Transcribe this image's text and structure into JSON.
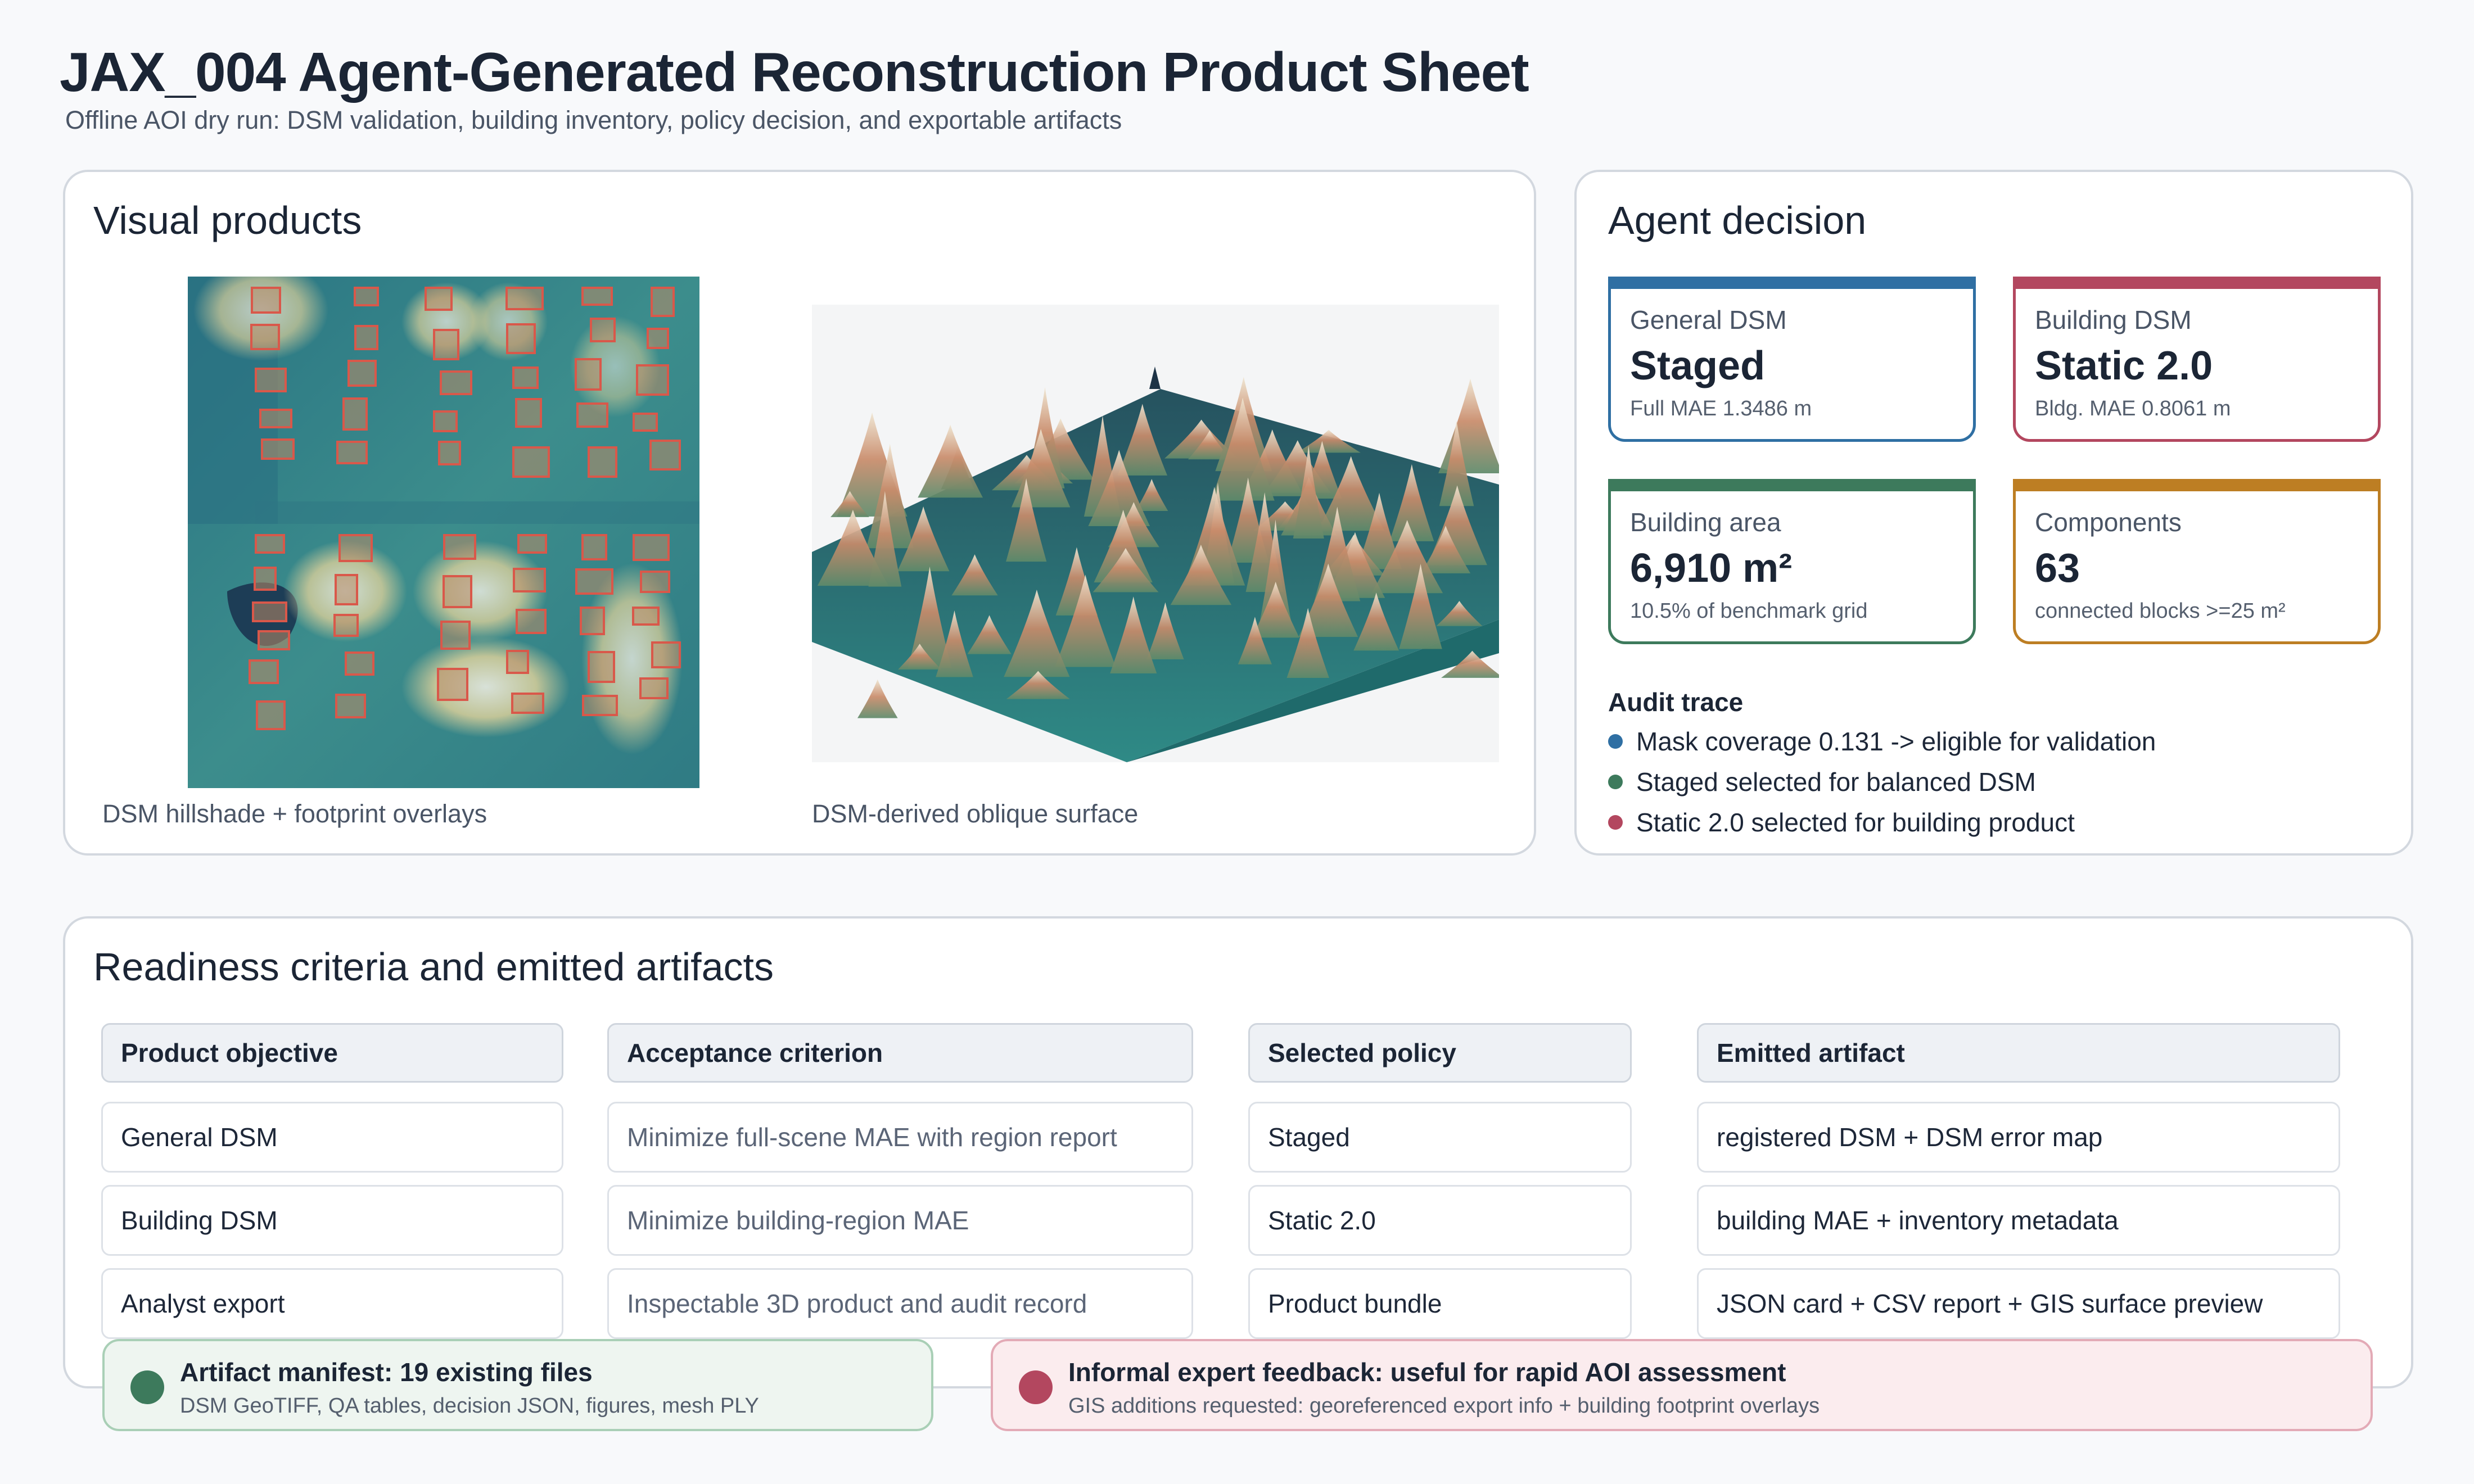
{
  "header": {
    "title": "JAX_004 Agent-Generated Reconstruction Product Sheet",
    "subtitle": "Offline AOI dry run: DSM validation, building inventory, policy decision, and exportable artifacts"
  },
  "visual_products": {
    "title": "Visual products",
    "left_caption": "DSM hillshade + footprint overlays",
    "right_caption": "DSM-derived oblique surface"
  },
  "agent_decision": {
    "title": "Agent decision",
    "cards": [
      {
        "label": "General DSM",
        "value": "Staged",
        "note": "Full MAE 1.3486 m",
        "color": "#2f6fa3"
      },
      {
        "label": "Building DSM",
        "value": "Static 2.0",
        "note": "Bldg. MAE 0.8061 m",
        "color": "#b3475f"
      },
      {
        "label": "Building area",
        "value": "6,910 m²",
        "note": "10.5% of benchmark grid",
        "color": "#3d7a5c"
      },
      {
        "label": "Components",
        "value": "63",
        "note": "connected blocks >=25 m²",
        "color": "#bd7e23"
      }
    ],
    "audit": {
      "heading": "Audit trace",
      "items": [
        {
          "text": "Mask coverage 0.131 -> eligible for validation",
          "color": "#2f6fa3"
        },
        {
          "text": "Staged selected for balanced DSM",
          "color": "#3d7a5c"
        },
        {
          "text": "Static 2.0 selected for building product",
          "color": "#b3475f"
        }
      ]
    }
  },
  "readiness": {
    "title": "Readiness criteria and emitted artifacts",
    "headers": [
      "Product objective",
      "Acceptance criterion",
      "Selected policy",
      "Emitted artifact"
    ],
    "rows": [
      [
        "General DSM",
        "Minimize full-scene MAE with region report",
        "Staged",
        "registered DSM + DSM error map"
      ],
      [
        "Building DSM",
        "Minimize building-region MAE",
        "Static 2.0",
        "building MAE + inventory metadata"
      ],
      [
        "Analyst export",
        "Inspectable 3D product and audit record",
        "Product bundle",
        "JSON card + CSV report + GIS surface preview"
      ]
    ]
  },
  "notices": {
    "manifest": {
      "title": "Artifact manifest: 19 existing files",
      "text": "DSM GeoTIFF, QA tables, decision JSON, figures, mesh PLY",
      "color": "#3d7a5c"
    },
    "feedback": {
      "title": "Informal expert feedback: useful for rapid AOI assessment",
      "text": "GIS additions requested: georeferenced export info + building footprint overlays",
      "color": "#b3475f"
    }
  }
}
